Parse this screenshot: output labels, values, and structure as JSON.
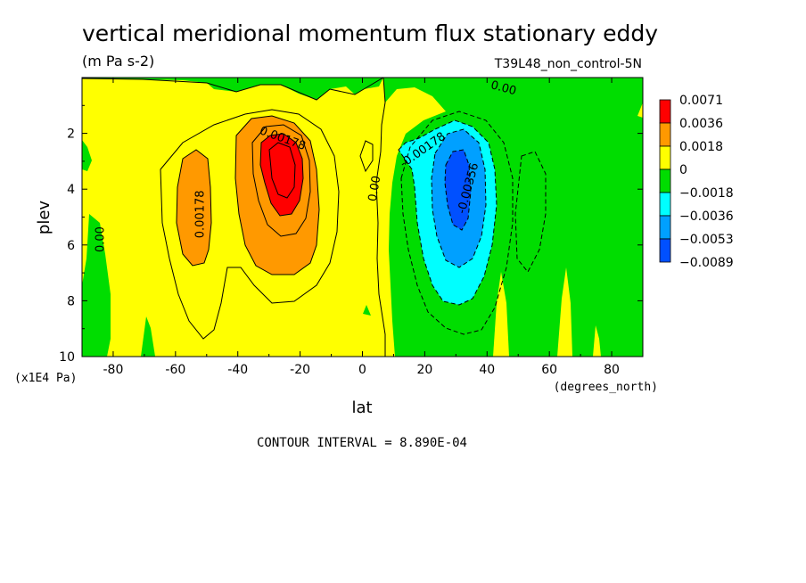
{
  "chart_data": {
    "type": "heatmap",
    "title": "vertical meridional momentum flux stationary eddy",
    "units": "(m Pa s-2)",
    "experiment": "T39L48_non_control-5N",
    "xlabel": "lat",
    "xunits": "(degrees_north)",
    "ylabel": "plev",
    "yunits": "(x1E4 Pa)",
    "xlim": [
      -90,
      90
    ],
    "ylim": [
      10,
      0
    ],
    "x_ticks": [
      -80,
      -60,
      -40,
      -20,
      0,
      20,
      40,
      60,
      80
    ],
    "x_tick_labels": [
      "-80",
      "-60",
      "-40",
      "-20",
      "0",
      "20",
      "40",
      "60",
      "80"
    ],
    "y_ticks": [
      2,
      4,
      6,
      8,
      10
    ],
    "y_tick_labels": [
      "2",
      "4",
      "6",
      "8",
      "10"
    ],
    "contour_interval_text": "CONTOUR INTERVAL = 8.890E-04",
    "legend": {
      "placement": "right",
      "labels": [
        "0.0071",
        "0.0036",
        "0.0018",
        "0",
        "−0.0018",
        "−0.0036",
        "−0.0053",
        "−0.0089"
      ],
      "colors": [
        "#ff0000",
        "#ff9900",
        "#ffff00",
        "#00dd00",
        "#00ffff",
        "#00a0ff",
        "#0050ff"
      ]
    },
    "background_field_color": "#ffff00",
    "features": [
      {
        "name": "southern positive maximum",
        "lat": -26,
        "plev": 3.5,
        "approx_value": 0.0045,
        "level_color": "#ff0000"
      },
      {
        "name": "southern positive secondary",
        "lat": -51,
        "plev": 4.5,
        "approx_value": 0.0025,
        "level_color": "#ff9900"
      },
      {
        "name": "northern negative minimum",
        "lat": 30,
        "plev": 4.0,
        "approx_value": -0.0065,
        "level_color": "#0050ff"
      },
      {
        "name": "northern negative region",
        "lat": 30,
        "plev": 5.0,
        "approx_value": -0.0028,
        "level_color": "#00ffff"
      }
    ],
    "contour_labels": [
      {
        "text": "0.00178",
        "lat": -26,
        "plev": 2.3,
        "angle": 20
      },
      {
        "text": "0.00178",
        "lat": -51,
        "plev": 4.9,
        "angle": -90
      },
      {
        "text": "0.00",
        "lat": -83,
        "plev": 5.8,
        "angle": -90
      },
      {
        "text": "0.00",
        "lat": 5,
        "plev": 4.0,
        "angle": -80
      },
      {
        "text": "-0.00178",
        "lat": 20,
        "plev": 2.7,
        "angle": -35
      },
      {
        "text": "-0.00356",
        "lat": 35,
        "plev": 4.0,
        "angle": -75
      },
      {
        "text": "0.00",
        "lat": 45,
        "plev": 0.5,
        "angle": 15
      }
    ]
  }
}
